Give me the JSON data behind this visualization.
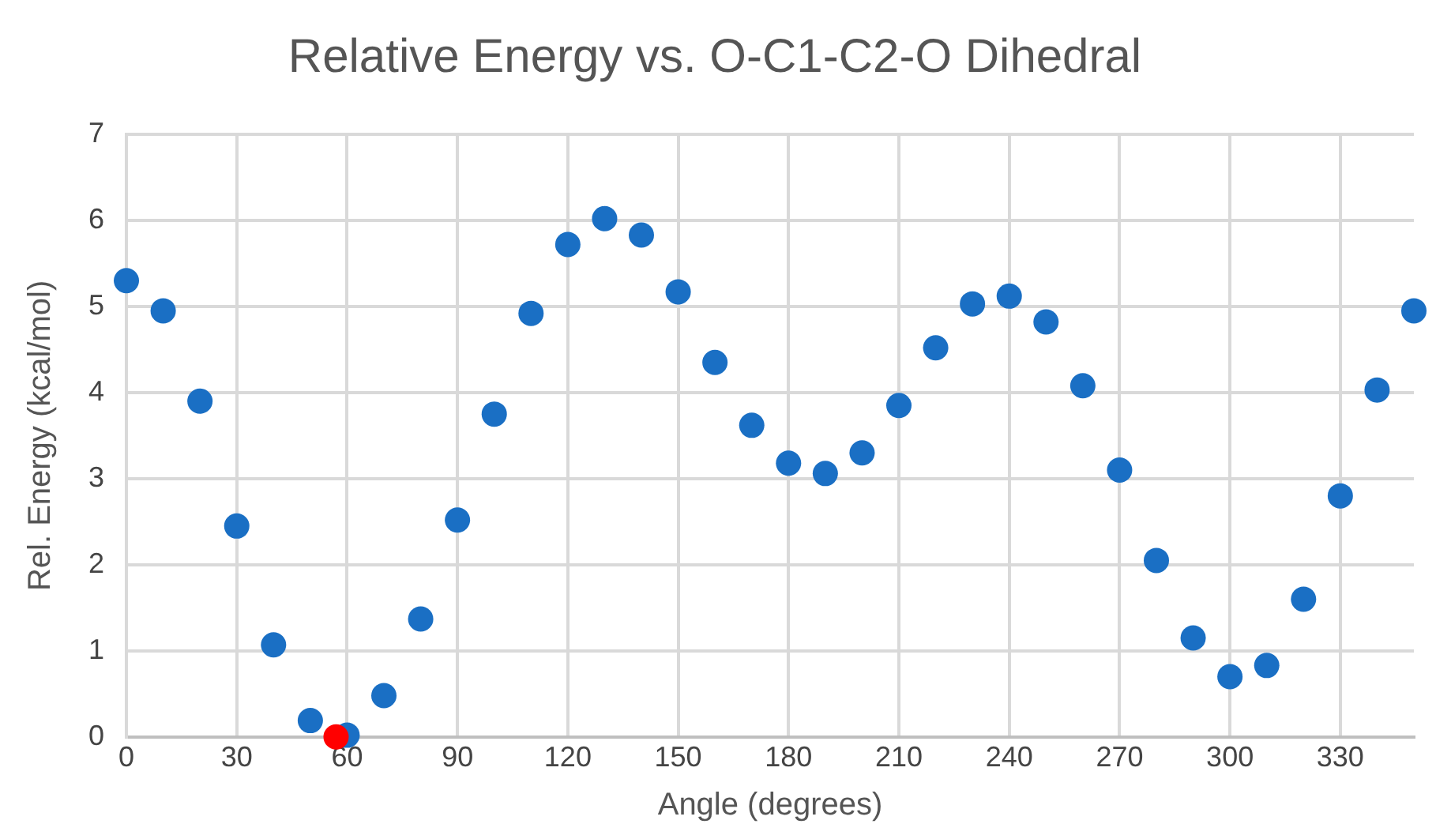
{
  "chart_data": {
    "type": "scatter",
    "title": "Relative Energy vs. O-C1-C2-O Dihedral",
    "xlabel": "Angle (degrees)",
    "ylabel": "Rel. Energy (kcal/mol)",
    "series": [
      {
        "color": "#1a6fc4",
        "x": [
          0,
          10,
          20,
          30,
          40,
          50,
          60,
          70,
          80,
          90,
          100,
          110,
          120,
          130,
          140,
          150,
          160,
          170,
          180,
          190,
          200,
          210,
          220,
          230,
          240,
          250,
          260,
          270,
          280,
          290,
          300,
          310,
          320,
          330,
          340,
          350
        ],
        "values": [
          5.3,
          4.95,
          3.9,
          2.45,
          1.07,
          0.19,
          0.02,
          0.48,
          1.37,
          2.52,
          3.75,
          4.92,
          5.72,
          6.02,
          5.83,
          5.17,
          4.35,
          3.62,
          3.18,
          3.06,
          3.3,
          3.85,
          4.52,
          5.03,
          5.12,
          4.82,
          4.08,
          3.1,
          2.05,
          1.15,
          0.7,
          0.83,
          1.6,
          2.8,
          4.03,
          4.95
        ]
      },
      {
        "color": "#ff0000",
        "x": [
          57
        ],
        "values": [
          0
        ]
      }
    ],
    "xlim": [
      0,
      350
    ],
    "xticks": [
      0,
      30,
      60,
      90,
      120,
      150,
      180,
      210,
      240,
      270,
      300,
      330
    ],
    "ylim": [
      0,
      7
    ],
    "yticks": [
      0,
      1,
      2,
      3,
      4,
      5,
      6,
      7
    ],
    "grid": true,
    "legend": false,
    "marker": "circle"
  }
}
